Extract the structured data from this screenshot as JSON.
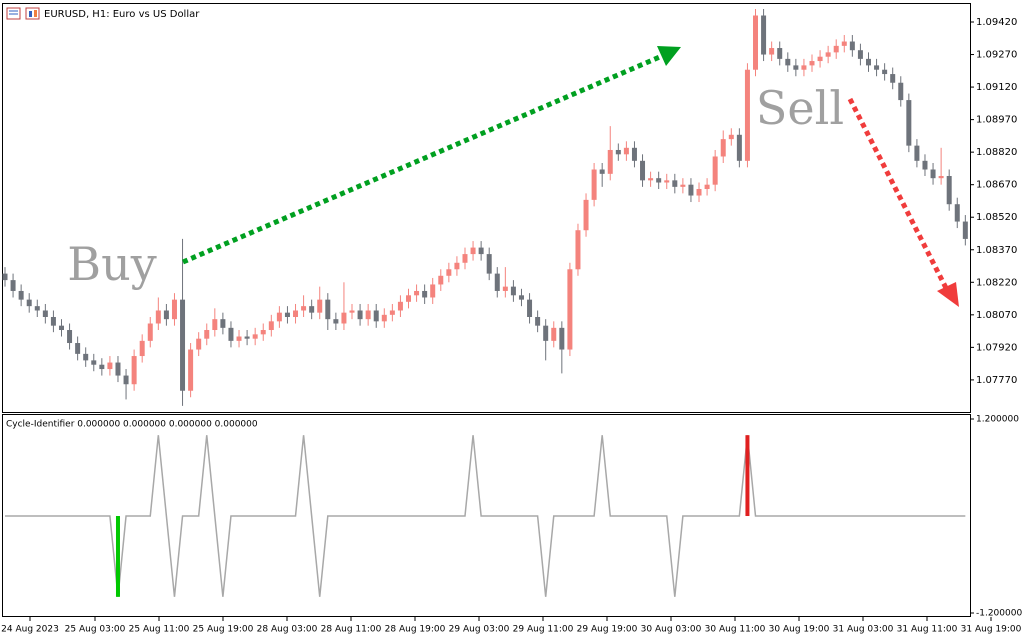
{
  "chart_data": [
    {
      "type": "candlestick",
      "title": "EURUSD, H1:  Euro vs US Dollar",
      "open": [
        1.0826,
        1.0823,
        1.0818,
        1.0814,
        1.0811,
        1.0809,
        1.0806,
        1.0802,
        1.08,
        1.0794,
        1.0789,
        1.0786,
        1.0784,
        1.0782,
        1.0785,
        1.0779,
        1.0775,
        1.0788,
        1.0795,
        1.0803,
        1.0809,
        1.0805,
        1.0814,
        1.0772,
        1.0791,
        1.0796,
        1.08,
        1.0805,
        1.0801,
        1.0795,
        1.0797,
        1.0796,
        1.0798,
        1.08,
        1.0804,
        1.0808,
        1.0806,
        1.0809,
        1.0811,
        1.0808,
        1.0814,
        1.0805,
        1.0803,
        1.0808,
        1.0809,
        1.0805,
        1.0809,
        1.0804,
        1.0807,
        1.0809,
        1.0813,
        1.0816,
        1.0818,
        1.0815,
        1.0821,
        1.0825,
        1.0828,
        1.0831,
        1.0835,
        1.0838,
        1.0835,
        1.0826,
        1.0818,
        1.082,
        1.0816,
        1.0814,
        1.0806,
        1.0802,
        1.0795,
        1.0801,
        1.0791,
        1.0828,
        1.0846,
        1.086,
        1.0874,
        1.0872,
        1.0883,
        1.0881,
        1.0884,
        1.0878,
        1.0869,
        1.087,
        1.0868,
        1.0869,
        1.0866,
        1.0867,
        1.0862,
        1.0865,
        1.0867,
        1.088,
        1.0888,
        1.089,
        1.0878,
        1.092,
        1.0945,
        1.0927,
        1.093,
        1.0925,
        1.0922,
        1.092,
        1.0922,
        1.0924,
        1.0926,
        1.0928,
        1.0931,
        1.0933,
        1.0929,
        1.0925,
        1.0922,
        1.092,
        1.0918,
        1.0914,
        1.0906,
        1.0885,
        1.0878,
        1.0874,
        1.087,
        1.0871,
        1.0858,
        1.085
      ],
      "high": [
        1.0829,
        1.0826,
        1.0821,
        1.0817,
        1.0814,
        1.0812,
        1.0809,
        1.0805,
        1.0803,
        1.0797,
        1.0792,
        1.0789,
        1.0787,
        1.0788,
        1.0788,
        1.0782,
        1.0791,
        1.0798,
        1.0806,
        1.0815,
        1.0812,
        1.0817,
        1.0842,
        1.0794,
        1.0799,
        1.0803,
        1.081,
        1.0808,
        1.0804,
        1.08,
        1.08,
        1.0801,
        1.0803,
        1.0807,
        1.0811,
        1.0811,
        1.0812,
        1.0816,
        1.0814,
        1.082,
        1.0817,
        1.0808,
        1.0822,
        1.0812,
        1.0812,
        1.0812,
        1.0812,
        1.081,
        1.0812,
        1.0816,
        1.0819,
        1.0821,
        1.0821,
        1.0824,
        1.0828,
        1.0831,
        1.0834,
        1.0838,
        1.0841,
        1.0841,
        1.0838,
        1.0829,
        1.0829,
        1.0823,
        1.0819,
        1.0817,
        1.0809,
        1.0805,
        1.0804,
        1.0804,
        1.0831,
        1.0849,
        1.0863,
        1.0877,
        1.0877,
        1.0894,
        1.0886,
        1.0887,
        1.0887,
        1.0881,
        1.0873,
        1.0873,
        1.0872,
        1.0872,
        1.087,
        1.087,
        1.0868,
        1.087,
        1.0883,
        1.0892,
        1.0893,
        1.0893,
        1.0923,
        1.0948,
        1.0948,
        1.0933,
        1.0933,
        1.0928,
        1.0925,
        1.0925,
        1.0927,
        1.0929,
        1.0931,
        1.0934,
        1.0936,
        1.0936,
        1.0932,
        1.0928,
        1.0925,
        1.0923,
        1.0921,
        1.0917,
        1.0909,
        1.0888,
        1.0881,
        1.0877,
        1.0884,
        1.0874,
        1.0861,
        1.0853
      ],
      "low": [
        1.082,
        1.0815,
        1.0811,
        1.0808,
        1.0806,
        1.0803,
        1.0799,
        1.0797,
        1.0791,
        1.0786,
        1.0783,
        1.0781,
        1.0779,
        1.0779,
        1.0776,
        1.0768,
        1.0772,
        1.0785,
        1.0792,
        1.08,
        1.0802,
        1.0802,
        1.0765,
        1.0769,
        1.0788,
        1.0793,
        1.0797,
        1.0798,
        1.0792,
        1.0792,
        1.0793,
        1.0793,
        1.0795,
        1.0797,
        1.0801,
        1.0803,
        1.0803,
        1.0806,
        1.0805,
        1.0805,
        1.08,
        1.08,
        1.08,
        1.0805,
        1.0802,
        1.0802,
        1.0801,
        1.0801,
        1.0804,
        1.0806,
        1.081,
        1.0813,
        1.0812,
        1.0812,
        1.0818,
        1.0822,
        1.0825,
        1.0828,
        1.0832,
        1.0832,
        1.0823,
        1.0815,
        1.0815,
        1.0813,
        1.0811,
        1.0803,
        1.0799,
        1.0786,
        1.0792,
        1.078,
        1.0788,
        1.0825,
        1.0843,
        1.0857,
        1.0866,
        1.0869,
        1.0878,
        1.0878,
        1.0875,
        1.0866,
        1.0866,
        1.0865,
        1.0865,
        1.0863,
        1.0863,
        1.0859,
        1.0859,
        1.0862,
        1.0864,
        1.0877,
        1.0885,
        1.0875,
        1.0875,
        1.0917,
        1.0924,
        1.0924,
        1.0922,
        1.0919,
        1.0917,
        1.0917,
        1.0919,
        1.0921,
        1.0923,
        1.0925,
        1.0928,
        1.0926,
        1.0922,
        1.0919,
        1.0917,
        1.0915,
        1.0911,
        1.0903,
        1.0882,
        1.0875,
        1.0871,
        1.0867,
        1.0867,
        1.0855,
        1.0847,
        1.0839
      ],
      "close": [
        1.0823,
        1.0818,
        1.0814,
        1.0811,
        1.0809,
        1.0806,
        1.0802,
        1.08,
        1.0794,
        1.0789,
        1.0786,
        1.0784,
        1.0782,
        1.0785,
        1.0779,
        1.0775,
        1.0788,
        1.0795,
        1.0803,
        1.0809,
        1.0805,
        1.0814,
        1.0772,
        1.0791,
        1.0796,
        1.08,
        1.0805,
        1.0801,
        1.0795,
        1.0797,
        1.0796,
        1.0798,
        1.08,
        1.0804,
        1.0808,
        1.0806,
        1.0809,
        1.0811,
        1.0808,
        1.0814,
        1.0805,
        1.0803,
        1.0808,
        1.0809,
        1.0805,
        1.0809,
        1.0804,
        1.0807,
        1.0809,
        1.0813,
        1.0816,
        1.0818,
        1.0815,
        1.0821,
        1.0825,
        1.0828,
        1.0831,
        1.0835,
        1.0838,
        1.0835,
        1.0826,
        1.0818,
        1.082,
        1.0816,
        1.0814,
        1.0806,
        1.0802,
        1.0795,
        1.0801,
        1.0791,
        1.0828,
        1.0846,
        1.086,
        1.0874,
        1.0872,
        1.0883,
        1.0881,
        1.0884,
        1.0878,
        1.0869,
        1.087,
        1.0868,
        1.0869,
        1.0866,
        1.0867,
        1.0862,
        1.0865,
        1.0867,
        1.088,
        1.0888,
        1.089,
        1.0878,
        1.092,
        1.0945,
        1.0927,
        1.093,
        1.0925,
        1.0922,
        1.092,
        1.0922,
        1.0924,
        1.0926,
        1.0928,
        1.0931,
        1.0933,
        1.0929,
        1.0925,
        1.0922,
        1.092,
        1.0918,
        1.0914,
        1.0906,
        1.0885,
        1.0878,
        1.0874,
        1.087,
        1.0871,
        1.0858,
        1.085,
        1.0842
      ],
      "up_color": "#f4837d",
      "down_color": "#6e737b",
      "ylim": [
        1.07622,
        1.09503
      ],
      "yticks": [
        {
          "value": 1.0942,
          "label": "1.09420"
        },
        {
          "value": 1.0927,
          "label": "1.09270"
        },
        {
          "value": 1.0912,
          "label": "1.09120"
        },
        {
          "value": 1.0897,
          "label": "1.08970"
        },
        {
          "value": 1.0882,
          "label": "1.08820"
        },
        {
          "value": 1.0867,
          "label": "1.08670"
        },
        {
          "value": 1.0852,
          "label": "1.08520"
        },
        {
          "value": 1.0837,
          "label": "1.08370"
        },
        {
          "value": 1.0822,
          "label": "1.08220"
        },
        {
          "value": 1.0807,
          "label": "1.08070"
        },
        {
          "value": 1.0792,
          "label": "1.07920"
        },
        {
          "value": 1.0777,
          "label": "1.07770"
        }
      ],
      "x_labels": [
        "24 Aug 2023",
        "25 Aug 03:00",
        "25 Aug 11:00",
        "25 Aug 19:00",
        "28 Aug 03:00",
        "28 Aug 11:00",
        "28 Aug 19:00",
        "29 Aug 03:00",
        "29 Aug 11:00",
        "29 Aug 19:00",
        "30 Aug 03:00",
        "30 Aug 11:00",
        "30 Aug 19:00",
        "31 Aug 03:00",
        "31 Aug 11:00",
        "31 Aug 19:00"
      ],
      "annotations": [
        "Buy",
        "Sell"
      ]
    },
    {
      "type": "line",
      "title": "Cycle-Identifier 0.000000 0.000000 0.000000 0.000000",
      "ylim": [
        -1.237,
        1.262
      ],
      "yticks": [
        {
          "value": 1.2,
          "label": "1.200000"
        },
        {
          "value": -1.2,
          "label": "-1.200000"
        }
      ],
      "series": [
        {
          "color": "#a8a8a8",
          "style": "line",
          "values": [
            0,
            0,
            0,
            0,
            0,
            0,
            0,
            0,
            0,
            0,
            0,
            0,
            0,
            0,
            -1,
            0,
            0,
            0,
            0,
            1,
            0,
            -1,
            0,
            0,
            0,
            1,
            0,
            -1,
            0,
            0,
            0,
            0,
            0,
            0,
            0,
            0,
            0,
            1,
            0,
            -1,
            0,
            0,
            0,
            0,
            0,
            0,
            0,
            0,
            0,
            0,
            0,
            0,
            0,
            0,
            0,
            0,
            0,
            0,
            1,
            0,
            0,
            0,
            0,
            0,
            0,
            0,
            0,
            -1,
            0,
            0,
            0,
            0,
            0,
            0,
            1,
            0,
            0,
            0,
            0,
            0,
            0,
            0,
            0,
            -1,
            0,
            0,
            0,
            0,
            0,
            0,
            0,
            0,
            1,
            0,
            0,
            0,
            0,
            0,
            0,
            0,
            0,
            0,
            0,
            0,
            0,
            0,
            0,
            0,
            0,
            0,
            0,
            0,
            0,
            0,
            0,
            0,
            0,
            0,
            0,
            0
          ]
        },
        {
          "color": "#00c800",
          "style": "histogram",
          "values": [
            null,
            null,
            null,
            null,
            null,
            null,
            null,
            null,
            null,
            null,
            null,
            null,
            null,
            null,
            -1,
            null,
            null,
            null,
            null,
            null,
            null,
            null,
            null,
            null,
            null,
            null,
            null,
            null,
            null,
            null,
            null,
            null,
            null,
            null,
            null,
            null,
            null,
            null,
            null,
            null,
            null,
            null,
            null,
            null,
            null,
            null,
            null,
            null,
            null,
            null,
            null,
            null,
            null,
            null,
            null,
            null,
            null,
            null,
            null,
            null,
            null,
            null,
            null,
            null,
            null,
            null,
            null,
            null,
            null,
            null,
            null,
            null,
            null,
            null,
            null,
            null,
            null,
            null,
            null,
            null,
            null,
            null,
            null,
            null,
            null,
            null,
            null,
            null,
            null,
            null,
            null,
            null,
            null,
            null,
            null,
            null,
            null,
            null,
            null,
            null,
            null,
            null,
            null,
            null,
            null,
            null,
            null,
            null,
            null,
            null,
            null,
            null,
            null,
            null,
            null,
            null,
            null,
            null,
            null,
            null
          ]
        },
        {
          "color": "#e02020",
          "style": "histogram",
          "values": [
            null,
            null,
            null,
            null,
            null,
            null,
            null,
            null,
            null,
            null,
            null,
            null,
            null,
            null,
            null,
            null,
            null,
            null,
            null,
            null,
            null,
            null,
            null,
            null,
            null,
            null,
            null,
            null,
            null,
            null,
            null,
            null,
            null,
            null,
            null,
            null,
            null,
            null,
            null,
            null,
            null,
            null,
            null,
            null,
            null,
            null,
            null,
            null,
            null,
            null,
            null,
            null,
            null,
            null,
            null,
            null,
            null,
            null,
            null,
            null,
            null,
            null,
            null,
            null,
            null,
            null,
            null,
            null,
            null,
            null,
            null,
            null,
            null,
            null,
            null,
            null,
            null,
            null,
            null,
            null,
            null,
            null,
            null,
            null,
            null,
            null,
            null,
            null,
            null,
            null,
            null,
            null,
            1,
            null,
            null,
            null,
            null,
            null,
            null,
            null,
            null,
            null,
            null,
            null,
            null,
            null,
            null,
            null,
            null,
            null,
            null,
            null,
            null,
            null,
            null,
            null,
            null,
            null,
            null,
            null
          ]
        }
      ]
    }
  ]
}
